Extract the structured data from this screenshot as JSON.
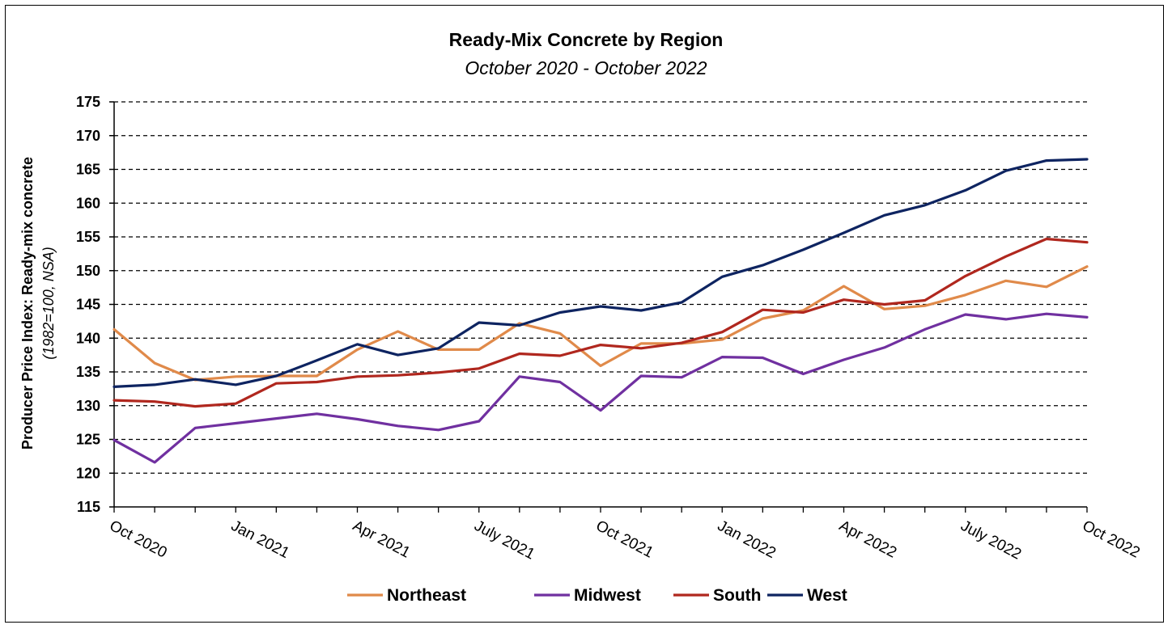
{
  "chart_data": {
    "type": "line",
    "title": "Ready-Mix Concrete by Region",
    "subtitle": "October 2020 - October 2022",
    "ylabel": "Producer Price Index: Ready-mix concrete",
    "ylabel_sub": "(1982=100, NSA)",
    "ylim": [
      115,
      175
    ],
    "yticks": [
      "115",
      "120",
      "125",
      "130",
      "135",
      "140",
      "145",
      "150",
      "155",
      "160",
      "165",
      "170",
      "175"
    ],
    "grid": "horizontal-dashed",
    "legend_position": "bottom",
    "x": [
      "Oct 2020",
      "Nov 2020",
      "Dec 2020",
      "Jan 2021",
      "Feb 2021",
      "Mar 2021",
      "Apr 2021",
      "May 2021",
      "June 2021",
      "July 2021",
      "Aug 2021",
      "Sep 2021",
      "Oct 2021",
      "Nov 2021",
      "Dec 2021",
      "Jan 2022",
      "Feb 2022",
      "Mar 2022",
      "Apr 2022",
      "May 2022",
      "June 2022",
      "July 2022",
      "Aug 2022",
      "Sep 2022",
      "Oct 2022"
    ],
    "xtick_labels": [
      {
        "index": 0,
        "label": "Oct 2020"
      },
      {
        "index": 3,
        "label": "Jan 2021"
      },
      {
        "index": 6,
        "label": "Apr 2021"
      },
      {
        "index": 9,
        "label": "July 2021"
      },
      {
        "index": 12,
        "label": "Oct 2021"
      },
      {
        "index": 15,
        "label": "Jan 2022"
      },
      {
        "index": 18,
        "label": "Apr 2022"
      },
      {
        "index": 21,
        "label": "July 2022"
      },
      {
        "index": 24,
        "label": "Oct 2022"
      }
    ],
    "series": [
      {
        "name": "Northeast",
        "color": "#E08A4A",
        "values": [
          141.3,
          136.3,
          133.8,
          134.3,
          134.4,
          134.4,
          138.3,
          141.0,
          138.3,
          138.3,
          142.2,
          140.7,
          135.9,
          139.2,
          139.2,
          139.8,
          142.9,
          144.1,
          147.7,
          144.3,
          144.8,
          146.4,
          148.5,
          147.6,
          150.6
        ]
      },
      {
        "name": "Midwest",
        "color": "#7030A0",
        "values": [
          124.9,
          121.6,
          126.7,
          127.4,
          128.1,
          128.8,
          128.0,
          127.0,
          126.4,
          127.7,
          134.3,
          133.5,
          129.3,
          134.4,
          134.2,
          137.2,
          137.1,
          134.7,
          136.8,
          138.6,
          141.3,
          143.5,
          142.8,
          143.6,
          143.1
        ]
      },
      {
        "name": "South",
        "color": "#B0271E",
        "values": [
          130.8,
          130.6,
          129.9,
          130.3,
          133.3,
          133.5,
          134.3,
          134.5,
          134.9,
          135.5,
          137.7,
          137.4,
          139.0,
          138.5,
          139.3,
          140.9,
          144.2,
          143.8,
          145.7,
          145.0,
          145.6,
          149.2,
          152.1,
          154.7,
          154.2
        ]
      },
      {
        "name": "West",
        "color": "#0E2461",
        "values": [
          132.8,
          133.1,
          133.9,
          133.1,
          134.4,
          136.7,
          139.1,
          137.5,
          138.5,
          142.3,
          141.9,
          143.8,
          144.7,
          144.1,
          145.3,
          149.1,
          150.8,
          153.1,
          155.6,
          158.2,
          159.7,
          161.9,
          164.8,
          166.3,
          166.5
        ]
      }
    ]
  }
}
